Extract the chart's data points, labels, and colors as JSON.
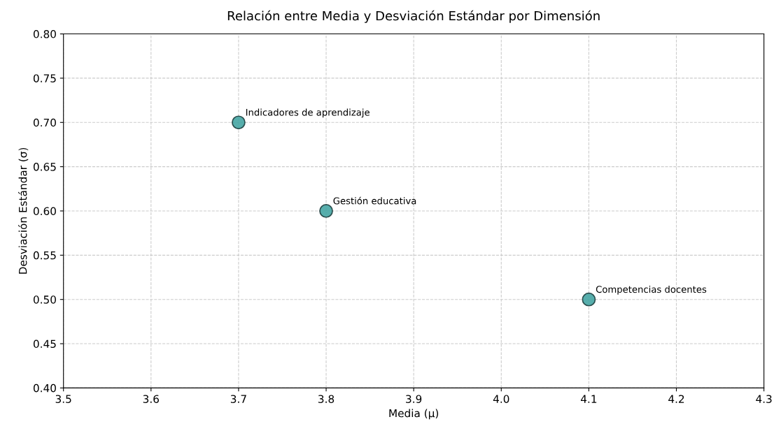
{
  "chart_data": {
    "type": "scatter",
    "title": "Relación entre Media y Desviación Estándar por Dimensión",
    "xlabel": "Media (μ)",
    "ylabel": "Desviación Estándar (σ)",
    "x": [
      3.7,
      3.8,
      4.1
    ],
    "values": [
      0.7,
      0.6,
      0.5
    ],
    "color": "#45a5a3",
    "marker": "circle",
    "xlim": [
      3.5,
      4.3
    ],
    "xticks": [
      {
        "value": 3.5,
        "label": "3.5"
      },
      {
        "value": 3.6,
        "label": "3.6"
      },
      {
        "value": 3.7,
        "label": "3.7"
      },
      {
        "value": 3.8,
        "label": "3.8"
      },
      {
        "value": 3.9,
        "label": "3.9"
      },
      {
        "value": 4.0,
        "label": "4.0"
      },
      {
        "value": 4.1,
        "label": "4.1"
      },
      {
        "value": 4.2,
        "label": "4.2"
      },
      {
        "value": 4.3,
        "label": "4.3"
      }
    ],
    "ylim": [
      0.4,
      0.8
    ],
    "yticks": [
      {
        "value": 0.4,
        "label": "0.40"
      },
      {
        "value": 0.45,
        "label": "0.45"
      },
      {
        "value": 0.5,
        "label": "0.50"
      },
      {
        "value": 0.55,
        "label": "0.55"
      },
      {
        "value": 0.6,
        "label": "0.60"
      },
      {
        "value": 0.65,
        "label": "0.65"
      },
      {
        "value": 0.7,
        "label": "0.70"
      },
      {
        "value": 0.75,
        "label": "0.75"
      },
      {
        "value": 0.8,
        "label": "0.80"
      }
    ],
    "grid": true,
    "annotations": [
      {
        "text": "Indicadores de aprendizaje",
        "x": 3.7,
        "y": 0.7
      },
      {
        "text": "Gestión educativa",
        "x": 3.8,
        "y": 0.6
      },
      {
        "text": "Competencias docentes",
        "x": 4.1,
        "y": 0.5
      }
    ]
  }
}
